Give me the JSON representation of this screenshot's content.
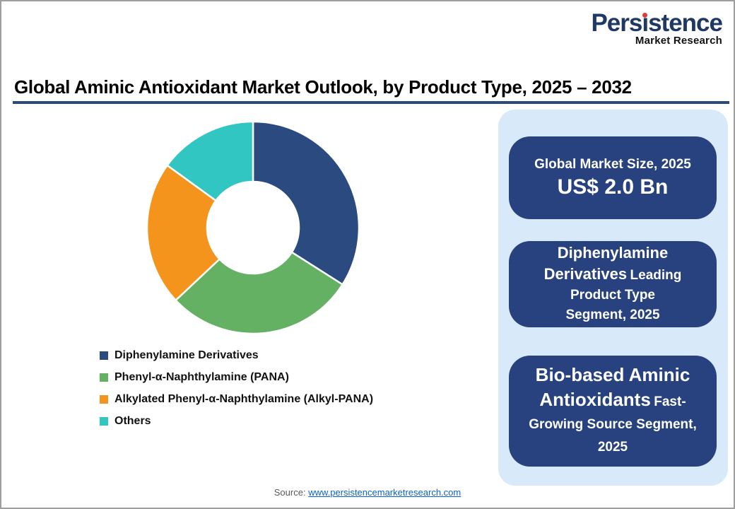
{
  "brand": {
    "name": "Persistence",
    "name_pre": "Pers",
    "name_i_char": "ı",
    "name_post": "stence",
    "tagline": "Market Research",
    "navy": "#1f3864",
    "dot_red": "#e23c39"
  },
  "header": {
    "title": "Global Aminic Antioxidant Market Outlook, by Product Type, 2025 – 2032",
    "underline_color": "#2b4a7d"
  },
  "chart_data": {
    "type": "pie",
    "subtype": "donut",
    "title": "Global Aminic Antioxidant Market Outlook, by Product Type, 2025 – 2032",
    "unit": "percent share (visually estimated, no data labels shown)",
    "start_angle_deg": 0,
    "direction": "clockwise",
    "inner_radius_ratio": 0.43,
    "legend_position": "bottom-left",
    "segments": [
      {
        "id": "diphenylamine-derivatives",
        "label": "Diphenylamine Derivatives",
        "value": 34,
        "color": "#2a4a80"
      },
      {
        "id": "pana",
        "label": "Phenyl-α-Naphthylamine (PANA)",
        "value": 29,
        "color": "#64b164"
      },
      {
        "id": "alkyl-pana",
        "label": "Alkylated Phenyl-α-Naphthylamine (Alkyl-PANA)",
        "value": 22,
        "color": "#f5941d"
      },
      {
        "id": "others",
        "label": "Others",
        "value": 15,
        "color": "#31c6c1"
      }
    ]
  },
  "info_panel": {
    "panel_bg": "#d8eafa",
    "card_bg": "#27427e",
    "cards": {
      "market_size": {
        "line1": "Global Market Size, 2025",
        "line2": "US$ 2.0 Bn"
      },
      "leading_segment": {
        "l1_big": "Diphenylamine",
        "l2_big": "Derivatives",
        "l2_small": "Leading",
        "l3": "Product Type",
        "l4": "Segment, 2025"
      },
      "fast_growing": {
        "l1_big": "Bio-based Aminic",
        "l2_big": "Antioxidants",
        "l2_small": "Fast-",
        "l3": "Growing Source Segment,",
        "l4": "2025"
      }
    }
  },
  "footer": {
    "source_label": "Source:",
    "source_link": "www.persistencemarketresearch.com"
  }
}
